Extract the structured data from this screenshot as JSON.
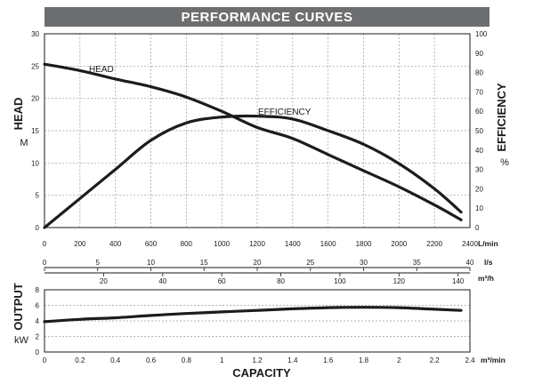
{
  "title": "PERFORMANCE CURVES",
  "chart_data": [
    {
      "type": "line",
      "name": "main",
      "x_label": "CAPACITY",
      "x_unit": "L/min",
      "xlim": [
        0,
        2400
      ],
      "x_ticks": [
        0,
        200,
        400,
        600,
        800,
        1000,
        1200,
        1400,
        1600,
        1800,
        2000,
        2200,
        2400
      ],
      "left_axis": {
        "label": "HEAD",
        "unit": "M",
        "ylim": [
          0,
          30
        ],
        "ticks": [
          0,
          5,
          10,
          15,
          20,
          25,
          30
        ]
      },
      "right_axis": {
        "label": "EFFICIENCY",
        "unit": "%",
        "ylim": [
          0,
          100
        ],
        "ticks": [
          0,
          10,
          20,
          30,
          40,
          50,
          60,
          70,
          80,
          90,
          100
        ]
      },
      "secondary_x_axes": [
        {
          "unit": "l/s",
          "ticks": [
            0,
            5,
            10,
            15,
            20,
            25,
            30,
            35,
            40
          ]
        },
        {
          "unit": "m³/h",
          "ticks": [
            20,
            40,
            60,
            80,
            100,
            120,
            140
          ]
        }
      ],
      "series": [
        {
          "name": "HEAD",
          "axis": "left",
          "x": [
            0,
            200,
            400,
            600,
            800,
            1000,
            1200,
            1400,
            1600,
            1800,
            2000,
            2200,
            2350
          ],
          "y": [
            25.3,
            24.3,
            23.0,
            21.8,
            20.2,
            18.0,
            15.5,
            13.8,
            11.3,
            8.8,
            6.3,
            3.5,
            1.2
          ]
        },
        {
          "name": "EFFICIENCY",
          "axis": "right",
          "x": [
            0,
            200,
            400,
            600,
            800,
            1000,
            1200,
            1400,
            1600,
            1800,
            2000,
            2200,
            2350
          ],
          "y": [
            0,
            15,
            30,
            45,
            54,
            57,
            57.5,
            56,
            50,
            43,
            33,
            20,
            8
          ]
        }
      ]
    },
    {
      "type": "line",
      "name": "output",
      "y_label": "OUTPUT",
      "y_unit": "kW",
      "ylim": [
        0,
        8
      ],
      "y_ticks": [
        0,
        2,
        4,
        6,
        8
      ],
      "x_label": "CAPACITY",
      "x_unit": "m³/min",
      "xlim": [
        0,
        2.4
      ],
      "x_ticks": [
        "0",
        "0.2",
        "0.4",
        "0.6",
        "0.8",
        "1",
        "1.2",
        "1.4",
        "1.6",
        "1.8",
        "2",
        "2.2",
        "2.4"
      ],
      "series": [
        {
          "name": "OUTPUT",
          "x": [
            0,
            0.2,
            0.4,
            0.6,
            0.8,
            1.0,
            1.2,
            1.4,
            1.6,
            1.8,
            2.0,
            2.2,
            2.35
          ],
          "y": [
            3.9,
            4.2,
            4.4,
            4.7,
            4.95,
            5.15,
            5.35,
            5.55,
            5.7,
            5.75,
            5.7,
            5.5,
            5.35
          ]
        }
      ]
    }
  ]
}
